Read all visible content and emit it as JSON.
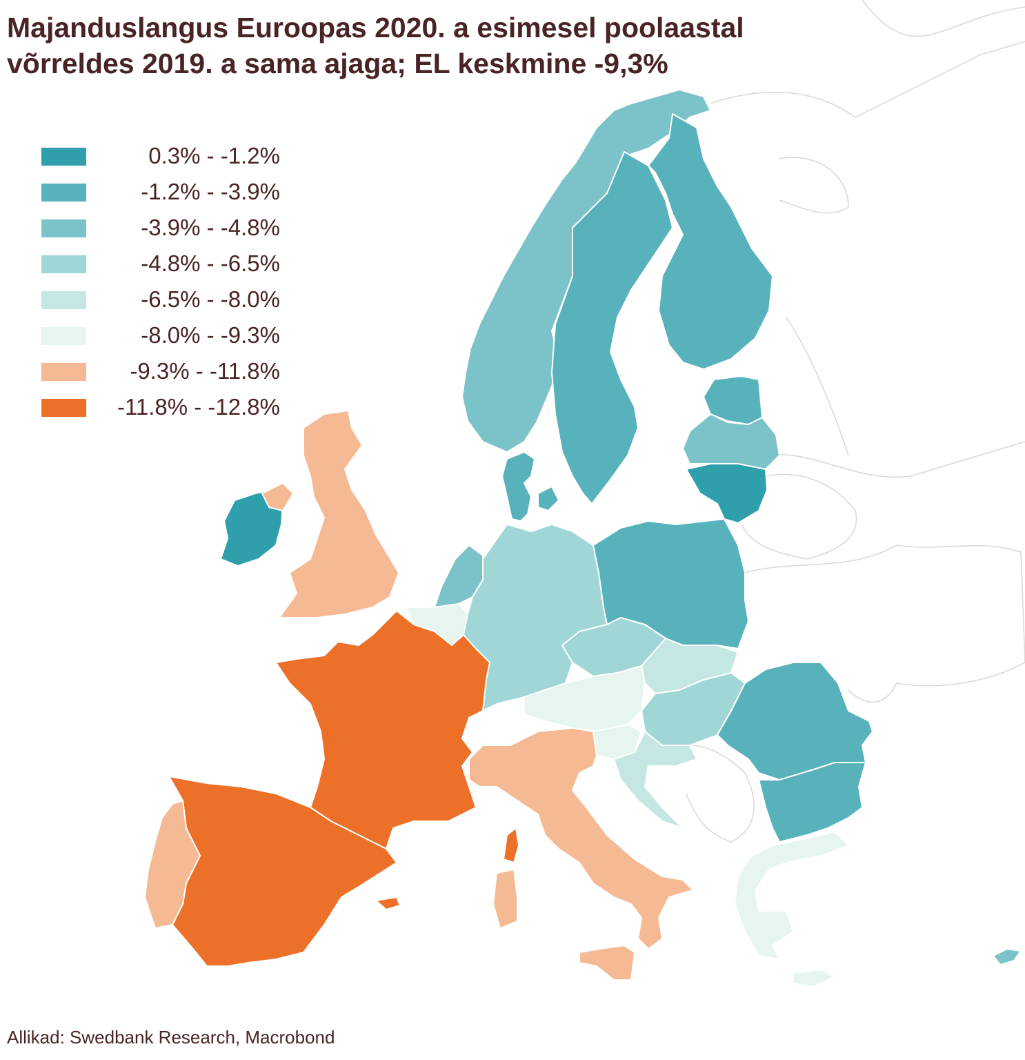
{
  "title": {
    "line1": "Majanduslangus Euroopas 2020. a esimesel poolaastal",
    "line2": "võrreldes 2019. a sama ajaga; EL keskmine -9,3%"
  },
  "legend": {
    "items": [
      {
        "label": "0.3% - -1.2%",
        "color": "#2e9fab"
      },
      {
        "label": "-1.2% - -3.9%",
        "color": "#57b2bb"
      },
      {
        "label": "-3.9% - -4.8%",
        "color": "#7bc3c8"
      },
      {
        "label": "-4.8% - -6.5%",
        "color": "#a1d6d7"
      },
      {
        "label": "-6.5% - -8.0%",
        "color": "#c5e7e4"
      },
      {
        "label": "-8.0% - -9.3%",
        "color": "#e6f5ef"
      },
      {
        "label": "-9.3% - -11.8%",
        "color": "#f5b993"
      },
      {
        "label": "-11.8% - -12.8%",
        "color": "#ec7027"
      }
    ]
  },
  "source": "Allikad: Swedbank Research, Macrobond"
}
